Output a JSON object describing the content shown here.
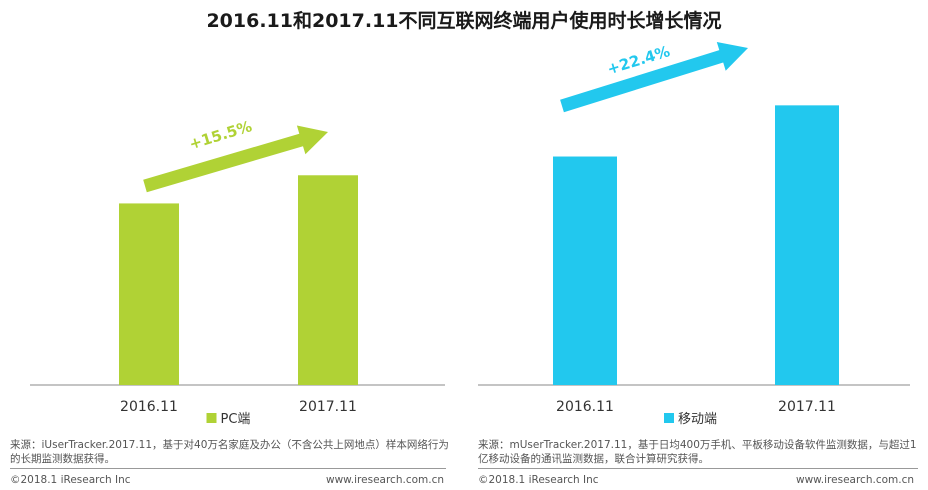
{
  "title": "2016.11和2017.11不同互联网终端用户使用时长增长情况",
  "chart_data": [
    {
      "type": "bar",
      "categories": [
        "2016.11",
        "2017.11"
      ],
      "series": [
        {
          "name": "PC端",
          "values": [
            100,
            115.5
          ],
          "color": "#b0d235"
        }
      ],
      "ylim": [
        0,
        190
      ],
      "growth_label": "+15.5%",
      "arrow_color": "#b0d235",
      "grid": false,
      "legend": "bottom-center"
    },
    {
      "type": "bar",
      "categories": [
        "2016.11",
        "2017.11"
      ],
      "series": [
        {
          "name": "移动端",
          "values": [
            100,
            122.4
          ],
          "color": "#22c8ee"
        }
      ],
      "ylim": [
        0,
        151
      ],
      "growth_label": "+22.4%",
      "arrow_color": "#22c8ee",
      "grid": false,
      "legend": "bottom-center"
    }
  ],
  "left_source": "来源：iUserTracker.2017.11，基于对40万名家庭及办公（不含公共上网地点）样本网络行为的长期监测数据获得。",
  "right_source": "来源：mUserTracker.2017.11，基于日均400万手机、平板移动设备软件监测数据，与超过1亿移动设备的通讯监测数据，联合计算研究获得。",
  "left_copyright": "©2018.1 iResearch Inc",
  "left_site": "www.iresearch.com.cn",
  "right_copyright": "©2018.1 iResearch Inc",
  "right_site": "www.iresearch.com.cn"
}
